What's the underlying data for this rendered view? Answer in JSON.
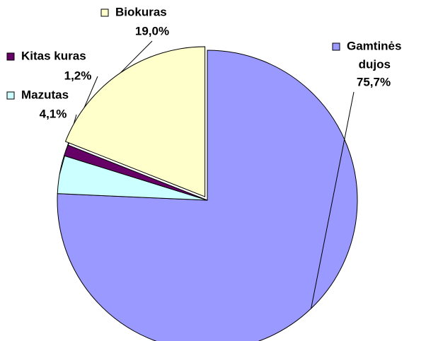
{
  "chart_data": {
    "type": "pie",
    "categories": [
      "Gamtinės dujos",
      "Mazutas",
      "Kitas kuras",
      "Biokuras"
    ],
    "category_lines": [
      [
        "Gamtinės",
        "dujos"
      ],
      [
        "Mazutas"
      ],
      [
        "Kitas kuras"
      ],
      [
        "Biokuras"
      ]
    ],
    "values": [
      75.7,
      4.1,
      1.2,
      19.0
    ],
    "value_labels": [
      "75,7%",
      "4,1%",
      "1,2%",
      "19,0%"
    ],
    "colors": [
      "#9999ff",
      "#ccffff",
      "#660066",
      "#ffffcc"
    ],
    "exploded": [
      false,
      false,
      false,
      true
    ]
  }
}
